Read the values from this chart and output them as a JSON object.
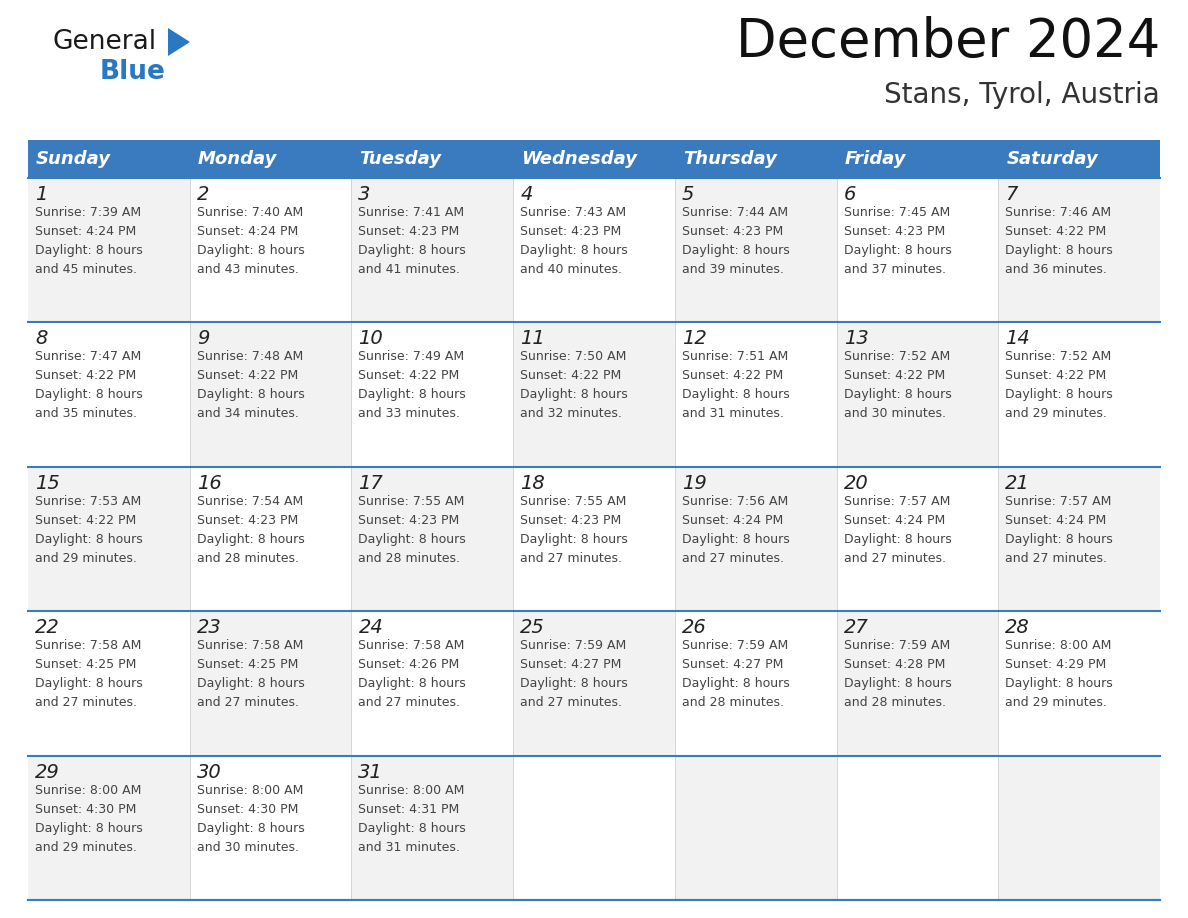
{
  "title": "December 2024",
  "subtitle": "Stans, Tyrol, Austria",
  "header_bg_color": "#3a7abf",
  "header_text_color": "#ffffff",
  "row_line_color": "#3a7abf",
  "cell_bg_color": "#f2f2f2",
  "days_of_week": [
    "Sunday",
    "Monday",
    "Tuesday",
    "Wednesday",
    "Thursday",
    "Friday",
    "Saturday"
  ],
  "weeks": [
    [
      {
        "day": 1,
        "sunrise": "7:39 AM",
        "sunset": "4:24 PM",
        "daylight_hours": 8,
        "daylight_minutes": 45
      },
      {
        "day": 2,
        "sunrise": "7:40 AM",
        "sunset": "4:24 PM",
        "daylight_hours": 8,
        "daylight_minutes": 43
      },
      {
        "day": 3,
        "sunrise": "7:41 AM",
        "sunset": "4:23 PM",
        "daylight_hours": 8,
        "daylight_minutes": 41
      },
      {
        "day": 4,
        "sunrise": "7:43 AM",
        "sunset": "4:23 PM",
        "daylight_hours": 8,
        "daylight_minutes": 40
      },
      {
        "day": 5,
        "sunrise": "7:44 AM",
        "sunset": "4:23 PM",
        "daylight_hours": 8,
        "daylight_minutes": 39
      },
      {
        "day": 6,
        "sunrise": "7:45 AM",
        "sunset": "4:23 PM",
        "daylight_hours": 8,
        "daylight_minutes": 37
      },
      {
        "day": 7,
        "sunrise": "7:46 AM",
        "sunset": "4:22 PM",
        "daylight_hours": 8,
        "daylight_minutes": 36
      }
    ],
    [
      {
        "day": 8,
        "sunrise": "7:47 AM",
        "sunset": "4:22 PM",
        "daylight_hours": 8,
        "daylight_minutes": 35
      },
      {
        "day": 9,
        "sunrise": "7:48 AM",
        "sunset": "4:22 PM",
        "daylight_hours": 8,
        "daylight_minutes": 34
      },
      {
        "day": 10,
        "sunrise": "7:49 AM",
        "sunset": "4:22 PM",
        "daylight_hours": 8,
        "daylight_minutes": 33
      },
      {
        "day": 11,
        "sunrise": "7:50 AM",
        "sunset": "4:22 PM",
        "daylight_hours": 8,
        "daylight_minutes": 32
      },
      {
        "day": 12,
        "sunrise": "7:51 AM",
        "sunset": "4:22 PM",
        "daylight_hours": 8,
        "daylight_minutes": 31
      },
      {
        "day": 13,
        "sunrise": "7:52 AM",
        "sunset": "4:22 PM",
        "daylight_hours": 8,
        "daylight_minutes": 30
      },
      {
        "day": 14,
        "sunrise": "7:52 AM",
        "sunset": "4:22 PM",
        "daylight_hours": 8,
        "daylight_minutes": 29
      }
    ],
    [
      {
        "day": 15,
        "sunrise": "7:53 AM",
        "sunset": "4:22 PM",
        "daylight_hours": 8,
        "daylight_minutes": 29
      },
      {
        "day": 16,
        "sunrise": "7:54 AM",
        "sunset": "4:23 PM",
        "daylight_hours": 8,
        "daylight_minutes": 28
      },
      {
        "day": 17,
        "sunrise": "7:55 AM",
        "sunset": "4:23 PM",
        "daylight_hours": 8,
        "daylight_minutes": 28
      },
      {
        "day": 18,
        "sunrise": "7:55 AM",
        "sunset": "4:23 PM",
        "daylight_hours": 8,
        "daylight_minutes": 27
      },
      {
        "day": 19,
        "sunrise": "7:56 AM",
        "sunset": "4:24 PM",
        "daylight_hours": 8,
        "daylight_minutes": 27
      },
      {
        "day": 20,
        "sunrise": "7:57 AM",
        "sunset": "4:24 PM",
        "daylight_hours": 8,
        "daylight_minutes": 27
      },
      {
        "day": 21,
        "sunrise": "7:57 AM",
        "sunset": "4:24 PM",
        "daylight_hours": 8,
        "daylight_minutes": 27
      }
    ],
    [
      {
        "day": 22,
        "sunrise": "7:58 AM",
        "sunset": "4:25 PM",
        "daylight_hours": 8,
        "daylight_minutes": 27
      },
      {
        "day": 23,
        "sunrise": "7:58 AM",
        "sunset": "4:25 PM",
        "daylight_hours": 8,
        "daylight_minutes": 27
      },
      {
        "day": 24,
        "sunrise": "7:58 AM",
        "sunset": "4:26 PM",
        "daylight_hours": 8,
        "daylight_minutes": 27
      },
      {
        "day": 25,
        "sunrise": "7:59 AM",
        "sunset": "4:27 PM",
        "daylight_hours": 8,
        "daylight_minutes": 27
      },
      {
        "day": 26,
        "sunrise": "7:59 AM",
        "sunset": "4:27 PM",
        "daylight_hours": 8,
        "daylight_minutes": 28
      },
      {
        "day": 27,
        "sunrise": "7:59 AM",
        "sunset": "4:28 PM",
        "daylight_hours": 8,
        "daylight_minutes": 28
      },
      {
        "day": 28,
        "sunrise": "8:00 AM",
        "sunset": "4:29 PM",
        "daylight_hours": 8,
        "daylight_minutes": 29
      }
    ],
    [
      {
        "day": 29,
        "sunrise": "8:00 AM",
        "sunset": "4:30 PM",
        "daylight_hours": 8,
        "daylight_minutes": 29
      },
      {
        "day": 30,
        "sunrise": "8:00 AM",
        "sunset": "4:30 PM",
        "daylight_hours": 8,
        "daylight_minutes": 30
      },
      {
        "day": 31,
        "sunrise": "8:00 AM",
        "sunset": "4:31 PM",
        "daylight_hours": 8,
        "daylight_minutes": 31
      },
      null,
      null,
      null,
      null
    ]
  ],
  "logo_text1": "General",
  "logo_text2": "Blue",
  "logo_color1": "#1a1a1a",
  "logo_color2": "#2878c3",
  "logo_triangle_color": "#2878c3",
  "title_fontsize": 38,
  "subtitle_fontsize": 20,
  "header_fontsize": 13,
  "day_number_fontsize": 14,
  "cell_text_fontsize": 9
}
